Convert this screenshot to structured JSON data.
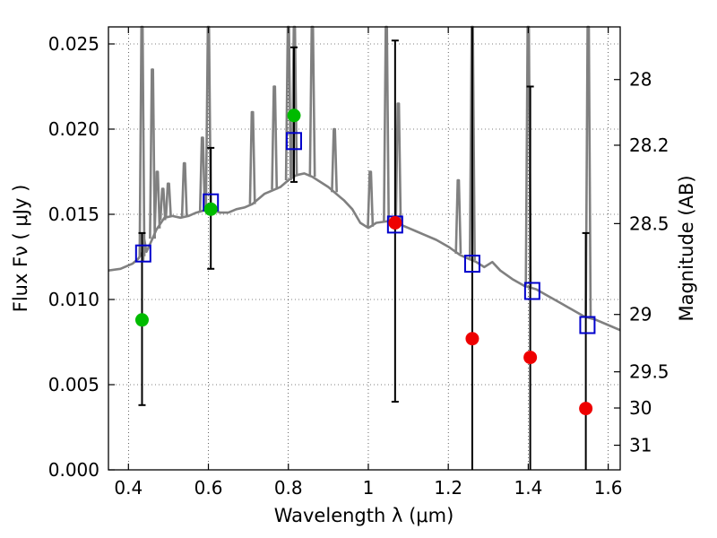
{
  "chart_data": {
    "type": "scatter",
    "xlabel": "Wavelength  λ (μm)",
    "ylabel": "Flux  Fν  ( μJy )",
    "y2label": "Magnitude (AB)",
    "xlim": [
      0.35,
      1.63
    ],
    "ylim": [
      0.0,
      0.026
    ],
    "grid": true,
    "x_ticks": [
      {
        "value": 0.4,
        "label": "0.4"
      },
      {
        "value": 0.6,
        "label": "0.6"
      },
      {
        "value": 0.8,
        "label": "0.8"
      },
      {
        "value": 1.0,
        "label": "1"
      },
      {
        "value": 1.2,
        "label": "1.2"
      },
      {
        "value": 1.4,
        "label": "1.4"
      },
      {
        "value": 1.6,
        "label": "1.6"
      }
    ],
    "y_ticks": [
      {
        "value": 0.0,
        "label": "0.000"
      },
      {
        "value": 0.005,
        "label": "0.005"
      },
      {
        "value": 0.01,
        "label": "0.010"
      },
      {
        "value": 0.015,
        "label": "0.015"
      },
      {
        "value": 0.02,
        "label": "0.020"
      },
      {
        "value": 0.025,
        "label": "0.025"
      }
    ],
    "y2_ticks": [
      {
        "value": 28,
        "label": "28"
      },
      {
        "value": 28.2,
        "label": "28.2"
      },
      {
        "value": 28.5,
        "label": "28.5"
      },
      {
        "value": 29,
        "label": "29"
      },
      {
        "value": 29.5,
        "label": "29.5"
      },
      {
        "value": 30,
        "label": "30"
      },
      {
        "value": 31,
        "label": "31"
      }
    ],
    "colors": {
      "template": "#808080",
      "model_box": "#0000cc",
      "detection": "#00bb00",
      "nondetection": "#ee0000",
      "errorbar": "#000000"
    },
    "series": [
      {
        "role": "template",
        "style": "line",
        "points": [
          [
            0.35,
            0.0117
          ],
          [
            0.38,
            0.0118
          ],
          [
            0.41,
            0.0121
          ],
          [
            0.425,
            0.0124
          ],
          [
            0.432,
            0.0127
          ],
          [
            0.437,
            0.0123
          ],
          [
            0.44,
            0.0135
          ],
          [
            0.445,
            0.0128
          ],
          [
            0.455,
            0.0133
          ],
          [
            0.47,
            0.0141
          ],
          [
            0.49,
            0.0148
          ],
          [
            0.51,
            0.0149
          ],
          [
            0.53,
            0.0148
          ],
          [
            0.55,
            0.0149
          ],
          [
            0.57,
            0.0151
          ],
          [
            0.585,
            0.0152
          ],
          [
            0.6,
            0.0153
          ],
          [
            0.615,
            0.0152
          ],
          [
            0.63,
            0.0151
          ],
          [
            0.65,
            0.0151
          ],
          [
            0.67,
            0.0153
          ],
          [
            0.69,
            0.0154
          ],
          [
            0.71,
            0.0156
          ],
          [
            0.72,
            0.0158
          ],
          [
            0.74,
            0.0162
          ],
          [
            0.76,
            0.0164
          ],
          [
            0.78,
            0.0166
          ],
          [
            0.8,
            0.017
          ],
          [
            0.82,
            0.0173
          ],
          [
            0.84,
            0.0174
          ],
          [
            0.86,
            0.0172
          ],
          [
            0.88,
            0.0169
          ],
          [
            0.9,
            0.0166
          ],
          [
            0.92,
            0.0162
          ],
          [
            0.94,
            0.0158
          ],
          [
            0.96,
            0.0153
          ],
          [
            0.98,
            0.0145
          ],
          [
            1.0,
            0.0142
          ],
          [
            1.02,
            0.0145
          ],
          [
            1.05,
            0.0146
          ],
          [
            1.08,
            0.0144
          ],
          [
            1.1,
            0.0142
          ],
          [
            1.12,
            0.014
          ],
          [
            1.14,
            0.0138
          ],
          [
            1.17,
            0.0135
          ],
          [
            1.2,
            0.0131
          ],
          [
            1.23,
            0.0126
          ],
          [
            1.25,
            0.0124
          ],
          [
            1.27,
            0.0122
          ],
          [
            1.29,
            0.0119
          ],
          [
            1.31,
            0.0122
          ],
          [
            1.33,
            0.0117
          ],
          [
            1.36,
            0.0112
          ],
          [
            1.39,
            0.0108
          ],
          [
            1.42,
            0.0106
          ],
          [
            1.45,
            0.0102
          ],
          [
            1.48,
            0.0098
          ],
          [
            1.51,
            0.0094
          ],
          [
            1.54,
            0.009
          ],
          [
            1.57,
            0.0088
          ],
          [
            1.6,
            0.0085
          ],
          [
            1.63,
            0.0082
          ]
        ]
      },
      {
        "role": "emission_lines",
        "style": "spikes",
        "lines": [
          {
            "x": 0.434,
            "peak": 0.026
          },
          {
            "x": 0.46,
            "peak": 0.0235
          },
          {
            "x": 0.472,
            "peak": 0.0175
          },
          {
            "x": 0.486,
            "peak": 0.0165
          },
          {
            "x": 0.5,
            "peak": 0.0168
          },
          {
            "x": 0.54,
            "peak": 0.018
          },
          {
            "x": 0.585,
            "peak": 0.0195
          },
          {
            "x": 0.6,
            "peak": 0.026
          },
          {
            "x": 0.71,
            "peak": 0.021
          },
          {
            "x": 0.765,
            "peak": 0.0225
          },
          {
            "x": 0.8,
            "peak": 0.026
          },
          {
            "x": 0.815,
            "peak": 0.026
          },
          {
            "x": 0.86,
            "peak": 0.026
          },
          {
            "x": 0.915,
            "peak": 0.02
          },
          {
            "x": 1.005,
            "peak": 0.0175
          },
          {
            "x": 1.045,
            "peak": 0.026
          },
          {
            "x": 1.075,
            "peak": 0.0215
          },
          {
            "x": 1.225,
            "peak": 0.017
          },
          {
            "x": 1.26,
            "peak": 0.026
          },
          {
            "x": 1.4,
            "peak": 0.026
          },
          {
            "x": 1.55,
            "peak": 0.026
          }
        ]
      },
      {
        "role": "model_boxes",
        "style": "open-square",
        "points": [
          [
            0.437,
            0.0127
          ],
          [
            0.606,
            0.0157
          ],
          [
            0.814,
            0.0193
          ],
          [
            1.067,
            0.0144
          ],
          [
            1.26,
            0.0121
          ],
          [
            1.41,
            0.0105
          ],
          [
            1.548,
            0.0085
          ]
        ]
      },
      {
        "role": "errorbars",
        "style": "errorbar",
        "bars": [
          {
            "x": 0.434,
            "low": 0.0038,
            "high": 0.0139
          },
          {
            "x": 0.606,
            "low": 0.0118,
            "high": 0.0189
          },
          {
            "x": 0.814,
            "low": 0.0169,
            "high": 0.0248
          },
          {
            "x": 1.067,
            "low": 0.004,
            "high": 0.0252
          },
          {
            "x": 1.26,
            "low": 0.0,
            "high": 0.026
          },
          {
            "x": 1.405,
            "low": 0.0,
            "high": 0.0225
          },
          {
            "x": 1.544,
            "low": 0.0,
            "high": 0.0139
          }
        ]
      },
      {
        "role": "detections",
        "style": "filled-circle",
        "points": [
          [
            0.434,
            0.0088
          ],
          [
            0.606,
            0.0153
          ],
          [
            0.814,
            0.0208
          ]
        ]
      },
      {
        "role": "nondetections",
        "style": "filled-circle",
        "points": [
          [
            1.067,
            0.0145
          ],
          [
            1.26,
            0.0077
          ],
          [
            1.405,
            0.0066
          ],
          [
            1.544,
            0.0036
          ]
        ]
      }
    ]
  }
}
